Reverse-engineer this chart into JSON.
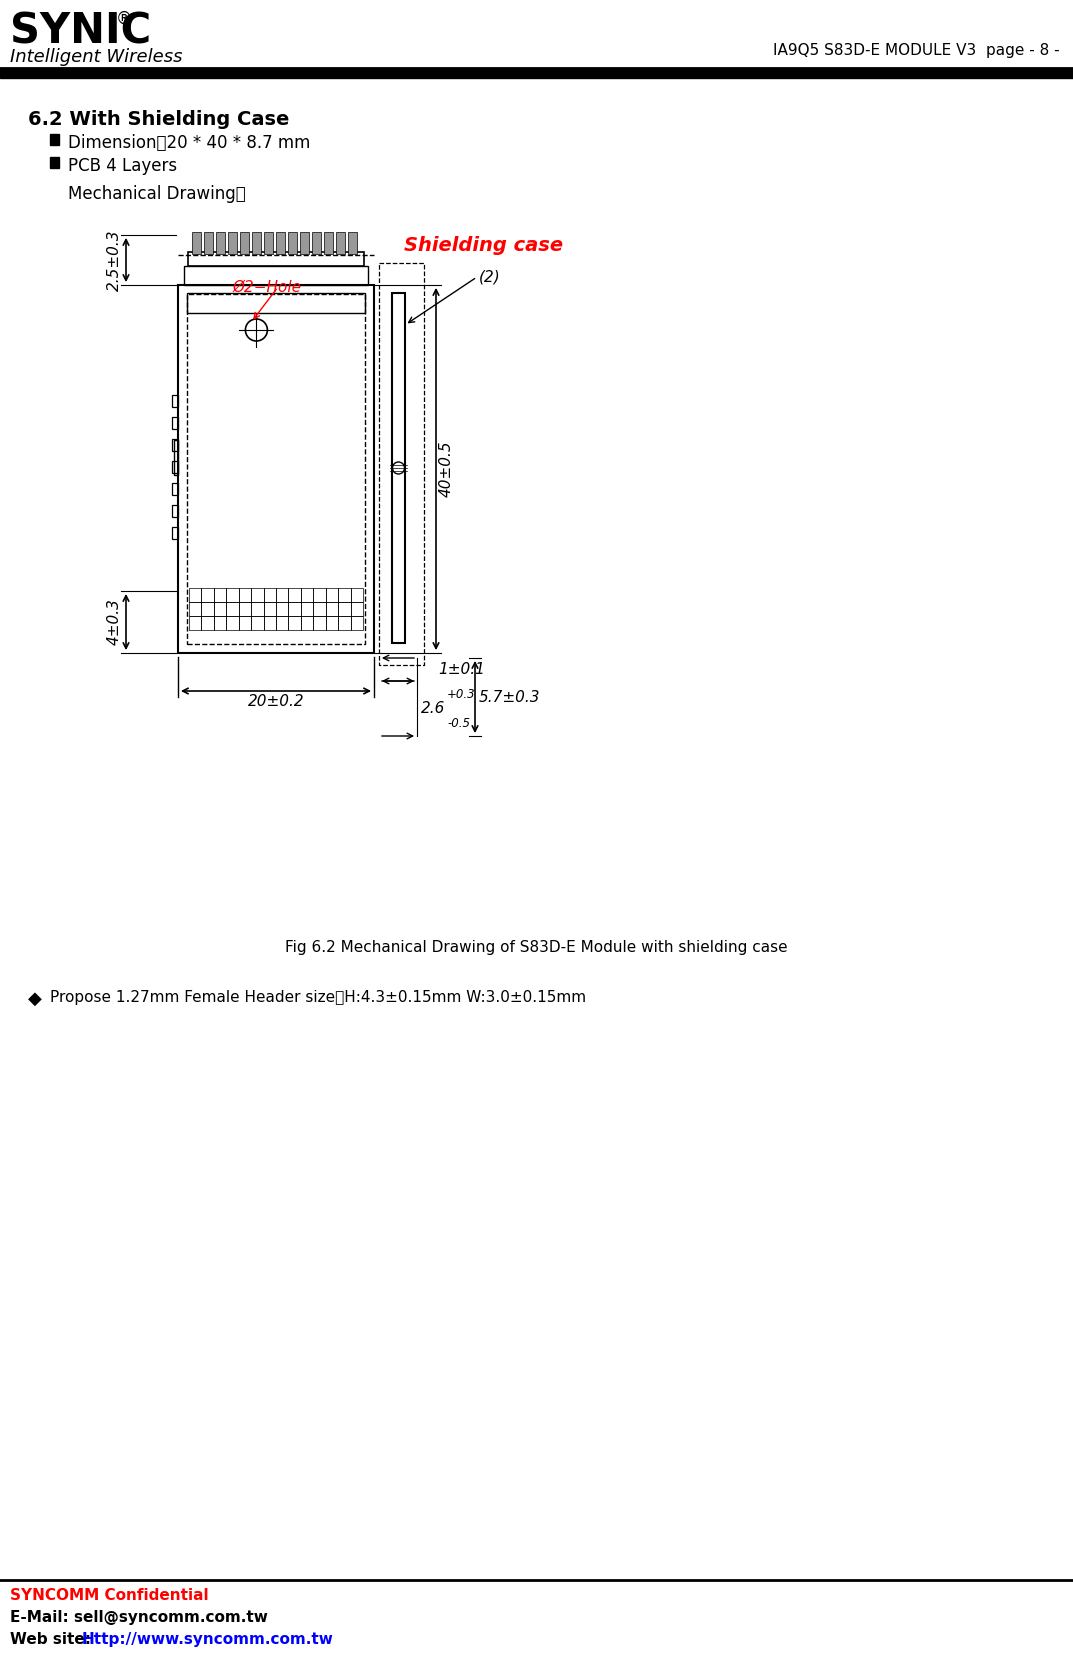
{
  "page_title": "IA9Q5 S83D-E MODULE V3  page - 8 -",
  "section_title": "6.2 With Shielding Case",
  "bullet1": "Dimension：20 * 40 * 8.7 mm",
  "bullet2": "PCB 4 Layers",
  "bullet3": "Mechanical Drawing：",
  "fig_caption": "Fig 6.2 Mechanical Drawing of S83D-E Module with shielding case",
  "propose_text": "Propose 1.27mm Female Header size：H:4.3±0.15mm W:3.0±0.15mm",
  "footer_line1": "SYNCOMM Confidential",
  "footer_line2_prefix": "E-Mail: ",
  "footer_line2_link": "sell@syncomm.com.tw",
  "footer_line3_prefix": "Web site: ",
  "footer_line3_link": "Http://www.syncomm.com.tw",
  "shielding_label": "Shielding case",
  "hole_label": "Ø2−Hole",
  "dim_20": "20±0.2",
  "dim_40": "40±0.5",
  "dim_25": "2.5±0.3",
  "dim_4": "4±0.3",
  "dim_1": "1±0.1",
  "dim_26": "2.6",
  "dim_26_tol_top": "+0.3",
  "dim_26_tol_bot": "-0.5",
  "dim_57": "5.7±0.3",
  "dim_2": "(2)",
  "bg_color": "#ffffff",
  "text_color": "#000000",
  "red_color": "#ff0000",
  "blue_color": "#0000ff",
  "shielding_text_color": "#ff0000",
  "hole_text_color": "#ff0000"
}
